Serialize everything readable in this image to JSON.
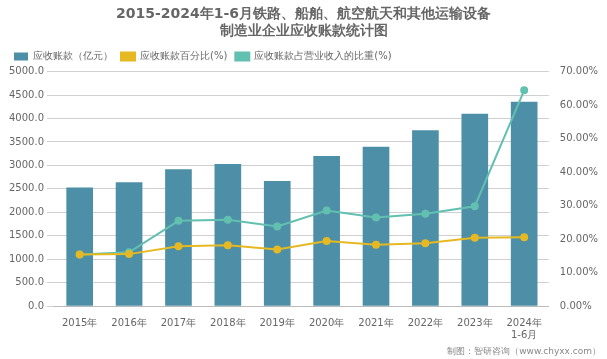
{
  "chart_data": {
    "type": "bar",
    "title": [
      "2015-2024年1-6月铁路、船舶、航空航天和其他运输设备",
      "制造业企业应收账款统计图"
    ],
    "categories": [
      "2015年",
      "2016年",
      "2017年",
      "2018年",
      "2019年",
      "2020年",
      "2021年",
      "2022年",
      "2023年",
      "2024年"
    ],
    "series": [
      {
        "name": "应收账款（亿元）",
        "type": "bar",
        "color": "#4D8FA6",
        "values": [
          2530,
          2640,
          2920,
          3030,
          2670,
          3200,
          3400,
          3750,
          4100,
          4360
        ]
      },
      {
        "name": "应收账款百分比(%)",
        "type": "line",
        "color": "#E6B822",
        "marker": "circle",
        "values": [
          1100,
          1110,
          1280,
          1300,
          1210,
          1390,
          1310,
          1340,
          1460,
          1470
        ]
      },
      {
        "name": "应收账款占营业收入的比重(%)",
        "type": "line",
        "color": "#62C0B0",
        "marker": "circle",
        "values": [
          1100,
          1150,
          1820,
          1840,
          1700,
          2040,
          1890,
          1970,
          2130,
          4600
        ]
      }
    ],
    "ylim": [
      0,
      5000
    ],
    "yticks": [
      {
        "value": 0,
        "label": "0.0"
      },
      {
        "value": 500,
        "label": "500.0"
      },
      {
        "value": 1000,
        "label": "1000.0"
      },
      {
        "value": 1500,
        "label": "1500.0"
      },
      {
        "value": 2000,
        "label": "2000.0"
      },
      {
        "value": 2500,
        "label": "2500.0"
      },
      {
        "value": 3000,
        "label": "3000.0"
      },
      {
        "value": 3500,
        "label": "3500.0"
      },
      {
        "value": 4000,
        "label": "4000.0"
      },
      {
        "value": 4500,
        "label": "4500.0"
      },
      {
        "value": 5000,
        "label": "5000.0"
      }
    ],
    "y2lim": [
      0,
      70
    ],
    "y2ticks": [
      {
        "value": 0,
        "label": "0.00%"
      },
      {
        "value": 10,
        "label": "10.00%"
      },
      {
        "value": 20,
        "label": "20.00%"
      },
      {
        "value": 30,
        "label": "30.00%"
      },
      {
        "value": 40,
        "label": "40.00%"
      },
      {
        "value": 50,
        "label": "50.00%"
      },
      {
        "value": 60,
        "label": "60.00%"
      },
      {
        "value": 70,
        "label": "70.00%"
      }
    ],
    "annotations": [
      {
        "text": "1-6月",
        "x": "2024年"
      },
      {
        "text": "制图：智研咨询（www.chyxx.com）"
      }
    ],
    "grid": true,
    "legend": "upper left"
  }
}
